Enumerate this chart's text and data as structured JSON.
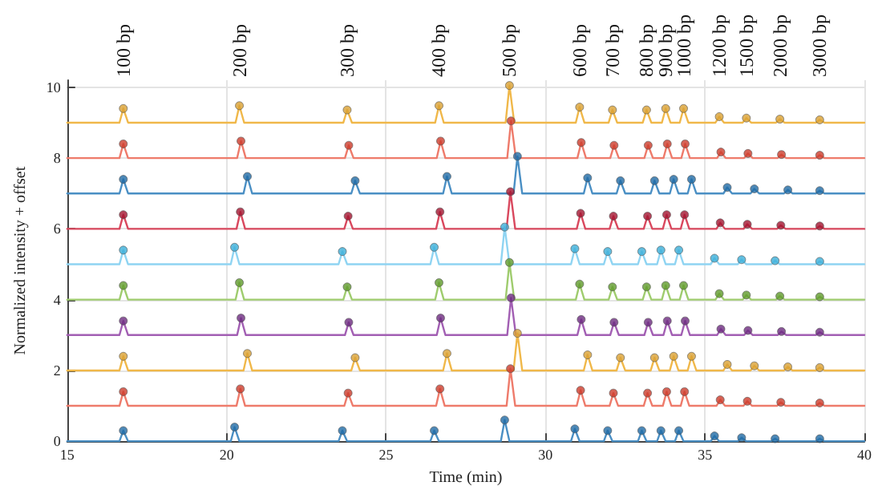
{
  "chart_data": {
    "type": "line",
    "xlabel": "Time (min)",
    "ylabel": "Normalized intensity + offset",
    "xlim": [
      15,
      40
    ],
    "xticks": [
      15,
      20,
      25,
      30,
      35,
      40
    ],
    "ylim": [
      0,
      10.2
    ],
    "yticks": [
      0,
      2,
      4,
      6,
      8,
      10
    ],
    "grid": true,
    "annotations": [
      "100 bp",
      "200 bp",
      "300 bp",
      "400 bp",
      "500 bp",
      "600 bp",
      "700 bp",
      "800 bp",
      "900 bp",
      "1000 bp",
      "1200 bp",
      "1500 bp",
      "2000 bp",
      "3000 bp"
    ],
    "series": [
      {
        "marker": "none",
        "color": "#f0b84a",
        "x": [
          15,
          16.64,
          16.76,
          16.91,
          20.28,
          20.4,
          20.55,
          23.66,
          23.78,
          23.93,
          26.54,
          26.66,
          26.81,
          28.75,
          28.87,
          29.02,
          30.95,
          31.07,
          31.22,
          31.98,
          32.1,
          32.25,
          33.05,
          33.17,
          33.32,
          33.65,
          33.77,
          33.92,
          34.21,
          34.33,
          34.48,
          35.33,
          35.45,
          35.6,
          36.18,
          36.3,
          36.45,
          37.23,
          37.35,
          37.5,
          38.48,
          38.6,
          38.75,
          40
        ],
        "values": [
          9,
          9,
          9.4,
          9,
          9,
          9.48,
          9,
          9,
          9.36,
          9,
          9,
          9.48,
          9,
          9,
          10.05,
          9,
          9,
          9.44,
          9,
          9,
          9.36,
          9,
          9,
          9.36,
          9,
          9,
          9.4,
          9,
          9,
          9.4,
          9,
          9,
          9.17,
          9,
          9,
          9.13,
          9,
          9,
          9.1,
          9,
          9,
          9.08,
          9,
          9
        ]
      },
      {
        "type": "scatter",
        "marker": "circle",
        "color": "#d9a032",
        "x": [
          16.76,
          20.4,
          23.78,
          26.66,
          28.87,
          31.07,
          32.1,
          33.17,
          33.77,
          34.33,
          35.45,
          36.3,
          37.35,
          38.6
        ],
        "values": [
          9.4,
          9.48,
          9.36,
          9.48,
          10.05,
          9.44,
          9.36,
          9.36,
          9.4,
          9.4,
          9.17,
          9.13,
          9.1,
          9.08
        ]
      },
      {
        "marker": "none",
        "color": "#ee7b6b",
        "x": [
          15,
          16.64,
          16.76,
          16.91,
          20.33,
          20.45,
          20.6,
          23.71,
          23.83,
          23.98,
          26.59,
          26.71,
          26.86,
          28.8,
          28.92,
          29.07,
          31,
          31.12,
          31.27,
          32.03,
          32.15,
          32.3,
          33.1,
          33.22,
          33.37,
          33.7,
          33.82,
          33.97,
          34.26,
          34.38,
          34.53,
          35.38,
          35.5,
          35.65,
          36.23,
          36.35,
          36.5,
          37.28,
          37.4,
          37.55,
          38.48,
          38.6,
          38.75,
          40
        ],
        "values": [
          8,
          8,
          8.4,
          8,
          8,
          8.48,
          8,
          8,
          8.36,
          8,
          8,
          8.48,
          8,
          8,
          9.05,
          8,
          8,
          8.44,
          8,
          8,
          8.36,
          8,
          8,
          8.36,
          8,
          8,
          8.4,
          8,
          8,
          8.4,
          8,
          8,
          8.17,
          8,
          8,
          8.13,
          8,
          8,
          8.1,
          8,
          8,
          8.08,
          8,
          8
        ]
      },
      {
        "type": "scatter",
        "marker": "circle",
        "color": "#cc3b2b",
        "x": [
          16.76,
          20.45,
          23.83,
          26.71,
          28.92,
          31.12,
          32.15,
          33.22,
          33.82,
          34.38,
          35.5,
          36.35,
          37.4,
          38.6
        ],
        "values": [
          8.4,
          8.48,
          8.36,
          8.48,
          9.05,
          8.44,
          8.36,
          8.36,
          8.4,
          8.4,
          8.17,
          8.13,
          8.1,
          8.08
        ]
      },
      {
        "marker": "none",
        "color": "#4a8fc4",
        "x": [
          15,
          16.64,
          16.76,
          16.91,
          20.53,
          20.65,
          20.8,
          23.91,
          24.03,
          24.18,
          26.79,
          26.91,
          27.06,
          29,
          29.12,
          29.27,
          31.2,
          31.32,
          31.47,
          32.23,
          32.35,
          32.5,
          33.3,
          33.42,
          33.57,
          33.9,
          34.02,
          34.17,
          34.46,
          34.58,
          34.73,
          35.58,
          35.7,
          35.85,
          36.43,
          36.55,
          36.7,
          37.48,
          37.6,
          37.75,
          38.48,
          38.6,
          38.75,
          40
        ],
        "values": [
          7,
          7,
          7.4,
          7,
          7,
          7.48,
          7,
          7,
          7.36,
          7,
          7,
          7.48,
          7,
          7,
          8.05,
          7,
          7,
          7.44,
          7,
          7,
          7.36,
          7,
          7,
          7.36,
          7,
          7,
          7.4,
          7,
          7,
          7.4,
          7,
          7,
          7.17,
          7,
          7,
          7.13,
          7,
          7,
          7.1,
          7,
          7,
          7.08,
          7,
          7
        ]
      },
      {
        "type": "scatter",
        "marker": "circle",
        "color": "#1f6aa5",
        "x": [
          16.76,
          20.65,
          24.03,
          26.91,
          29.12,
          31.32,
          32.35,
          33.42,
          34.02,
          34.58,
          35.7,
          36.55,
          37.6,
          38.6
        ],
        "values": [
          7.4,
          7.48,
          7.36,
          7.48,
          8.05,
          7.44,
          7.36,
          7.36,
          7.4,
          7.4,
          7.17,
          7.13,
          7.1,
          7.08
        ]
      },
      {
        "marker": "none",
        "color": "#d9485e",
        "x": [
          15,
          16.64,
          16.76,
          16.91,
          20.31,
          20.43,
          20.58,
          23.69,
          23.81,
          23.96,
          26.57,
          26.69,
          26.84,
          28.78,
          28.9,
          29.05,
          30.98,
          31.1,
          31.25,
          32.01,
          32.13,
          32.28,
          33.08,
          33.2,
          33.35,
          33.68,
          33.8,
          33.95,
          34.24,
          34.36,
          34.51,
          35.36,
          35.48,
          35.63,
          36.21,
          36.33,
          36.48,
          37.26,
          37.38,
          37.53,
          38.48,
          38.6,
          38.75,
          40
        ],
        "values": [
          6,
          6,
          6.4,
          6,
          6,
          6.48,
          6,
          6,
          6.36,
          6,
          6,
          6.48,
          6,
          6,
          7.05,
          6,
          6,
          6.44,
          6,
          6,
          6.36,
          6,
          6,
          6.36,
          6,
          6,
          6.4,
          6,
          6,
          6.4,
          6,
          6,
          6.17,
          6,
          6,
          6.13,
          6,
          6,
          6.1,
          6,
          6,
          6.08,
          6,
          6
        ]
      },
      {
        "type": "scatter",
        "marker": "circle",
        "color": "#a2142f",
        "x": [
          16.76,
          20.43,
          23.81,
          26.69,
          28.9,
          31.1,
          32.13,
          33.2,
          33.8,
          34.36,
          35.48,
          36.33,
          37.38,
          38.6
        ],
        "values": [
          6.4,
          6.48,
          6.36,
          6.48,
          7.05,
          6.44,
          6.36,
          6.36,
          6.4,
          6.4,
          6.17,
          6.13,
          6.1,
          6.08
        ]
      },
      {
        "marker": "none",
        "color": "#8fd4f2",
        "x": [
          15,
          16.64,
          16.76,
          16.91,
          20.13,
          20.25,
          20.4,
          23.51,
          23.63,
          23.78,
          26.39,
          26.51,
          26.66,
          28.6,
          28.72,
          28.87,
          30.8,
          30.92,
          31.07,
          31.83,
          31.95,
          32.1,
          32.9,
          33.02,
          33.17,
          33.5,
          33.62,
          33.77,
          34.06,
          34.18,
          34.33,
          35.18,
          35.3,
          35.45,
          36.03,
          36.15,
          36.3,
          37.08,
          37.2,
          37.35,
          38.48,
          38.6,
          38.75,
          40
        ],
        "values": [
          5,
          5,
          5.4,
          5,
          5,
          5.48,
          5,
          5,
          5.36,
          5,
          5,
          5.48,
          5,
          5,
          6.05,
          5,
          5,
          5.44,
          5,
          5,
          5.36,
          5,
          5,
          5.36,
          5,
          5,
          5.4,
          5,
          5,
          5.4,
          5,
          5,
          5.17,
          5,
          5,
          5.13,
          5,
          5,
          5.1,
          5,
          5,
          5.08,
          5,
          5
        ]
      },
      {
        "type": "scatter",
        "marker": "circle",
        "color": "#3aaed8",
        "x": [
          16.76,
          20.25,
          23.63,
          26.51,
          28.72,
          30.92,
          31.95,
          33.02,
          33.62,
          34.18,
          35.3,
          36.15,
          37.2,
          38.6
        ],
        "values": [
          5.4,
          5.48,
          5.36,
          5.48,
          6.05,
          5.44,
          5.36,
          5.36,
          5.4,
          5.4,
          5.17,
          5.13,
          5.1,
          5.08
        ]
      },
      {
        "marker": "none",
        "color": "#9fcc6e",
        "x": [
          15,
          16.64,
          16.76,
          16.91,
          20.28,
          20.4,
          20.55,
          23.66,
          23.78,
          23.93,
          26.54,
          26.66,
          26.81,
          28.75,
          28.87,
          29.02,
          30.95,
          31.07,
          31.22,
          31.98,
          32.1,
          32.25,
          33.05,
          33.17,
          33.32,
          33.65,
          33.77,
          33.92,
          34.21,
          34.33,
          34.48,
          35.33,
          35.45,
          35.6,
          36.18,
          36.3,
          36.45,
          37.23,
          37.35,
          37.5,
          38.48,
          38.6,
          38.75,
          40
        ],
        "values": [
          4,
          4,
          4.4,
          4,
          4,
          4.48,
          4,
          4,
          4.36,
          4,
          4,
          4.48,
          4,
          4,
          5.05,
          4,
          4,
          4.44,
          4,
          4,
          4.36,
          4,
          4,
          4.36,
          4,
          4,
          4.4,
          4,
          4,
          4.4,
          4,
          4,
          4.17,
          4,
          4,
          4.13,
          4,
          4,
          4.1,
          4,
          4,
          4.08,
          4,
          4
        ]
      },
      {
        "type": "scatter",
        "marker": "circle",
        "color": "#5f9a2a",
        "x": [
          16.76,
          20.4,
          23.78,
          26.66,
          28.87,
          31.07,
          32.1,
          33.17,
          33.77,
          34.33,
          35.45,
          36.3,
          37.35,
          38.6
        ],
        "values": [
          4.4,
          4.48,
          4.36,
          4.48,
          5.05,
          4.44,
          4.36,
          4.36,
          4.4,
          4.4,
          4.17,
          4.13,
          4.1,
          4.08
        ]
      },
      {
        "marker": "none",
        "color": "#a25fb3",
        "x": [
          15,
          16.64,
          16.76,
          16.91,
          20.33,
          20.45,
          20.6,
          23.71,
          23.83,
          23.98,
          26.59,
          26.71,
          26.86,
          28.8,
          28.92,
          29.07,
          31,
          31.12,
          31.27,
          32.03,
          32.15,
          32.3,
          33.1,
          33.22,
          33.37,
          33.7,
          33.82,
          33.97,
          34.26,
          34.38,
          34.53,
          35.38,
          35.5,
          35.65,
          36.23,
          36.35,
          36.5,
          37.28,
          37.4,
          37.55,
          38.48,
          38.6,
          38.75,
          40
        ],
        "values": [
          3,
          3,
          3.4,
          3,
          3,
          3.48,
          3,
          3,
          3.36,
          3,
          3,
          3.48,
          3,
          3,
          4.05,
          3,
          3,
          3.44,
          3,
          3,
          3.36,
          3,
          3,
          3.36,
          3,
          3,
          3.4,
          3,
          3,
          3.4,
          3,
          3,
          3.17,
          3,
          3,
          3.13,
          3,
          3,
          3.1,
          3,
          3,
          3.08,
          3,
          3
        ]
      },
      {
        "type": "scatter",
        "marker": "circle",
        "color": "#6d2a80",
        "x": [
          16.76,
          20.45,
          23.83,
          26.71,
          28.92,
          31.12,
          32.15,
          33.22,
          33.82,
          34.38,
          35.5,
          36.35,
          37.4,
          38.6
        ],
        "values": [
          3.4,
          3.48,
          3.36,
          3.48,
          4.05,
          3.44,
          3.36,
          3.36,
          3.4,
          3.4,
          3.17,
          3.13,
          3.1,
          3.08
        ]
      },
      {
        "marker": "none",
        "color": "#f0b84a",
        "x": [
          15,
          16.64,
          16.76,
          16.91,
          20.53,
          20.65,
          20.8,
          23.91,
          24.03,
          24.18,
          26.79,
          26.91,
          27.06,
          29,
          29.12,
          29.27,
          31.2,
          31.32,
          31.47,
          32.23,
          32.35,
          32.5,
          33.3,
          33.42,
          33.57,
          33.9,
          34.02,
          34.17,
          34.46,
          34.58,
          34.73,
          35.58,
          35.7,
          35.85,
          36.43,
          36.55,
          36.7,
          37.48,
          37.6,
          37.75,
          38.48,
          38.6,
          38.75,
          40
        ],
        "values": [
          2,
          2,
          2.4,
          2,
          2,
          2.48,
          2,
          2,
          2.36,
          2,
          2,
          2.48,
          2,
          2,
          3.05,
          2,
          2,
          2.44,
          2,
          2,
          2.36,
          2,
          2,
          2.36,
          2,
          2,
          2.4,
          2,
          2,
          2.4,
          2,
          2,
          2.17,
          2,
          2,
          2.13,
          2,
          2,
          2.1,
          2,
          2,
          2.08,
          2,
          2
        ]
      },
      {
        "type": "scatter",
        "marker": "circle",
        "color": "#d9a032",
        "x": [
          16.76,
          20.65,
          24.03,
          26.91,
          29.12,
          31.32,
          32.35,
          33.42,
          34.02,
          34.58,
          35.7,
          36.55,
          37.6,
          38.6
        ],
        "values": [
          2.4,
          2.48,
          2.36,
          2.48,
          3.05,
          2.44,
          2.36,
          2.36,
          2.4,
          2.4,
          2.17,
          2.13,
          2.1,
          2.08
        ]
      },
      {
        "marker": "none",
        "color": "#ee7b6b",
        "x": [
          15,
          16.64,
          16.76,
          16.91,
          20.31,
          20.43,
          20.58,
          23.69,
          23.81,
          23.96,
          26.57,
          26.69,
          26.84,
          28.78,
          28.9,
          29.05,
          30.98,
          31.1,
          31.25,
          32.01,
          32.13,
          32.28,
          33.08,
          33.2,
          33.35,
          33.68,
          33.8,
          33.95,
          34.24,
          34.36,
          34.51,
          35.36,
          35.48,
          35.63,
          36.21,
          36.33,
          36.48,
          37.26,
          37.38,
          37.53,
          38.48,
          38.6,
          38.75,
          40
        ],
        "values": [
          1,
          1,
          1.4,
          1,
          1,
          1.48,
          1,
          1,
          1.36,
          1,
          1,
          1.48,
          1,
          1,
          2.05,
          1,
          1,
          1.44,
          1,
          1,
          1.36,
          1,
          1,
          1.36,
          1,
          1,
          1.4,
          1,
          1,
          1.4,
          1,
          1,
          1.17,
          1,
          1,
          1.13,
          1,
          1,
          1.1,
          1,
          1,
          1.08,
          1,
          1
        ]
      },
      {
        "type": "scatter",
        "marker": "circle",
        "color": "#cc3b2b",
        "x": [
          16.76,
          20.43,
          23.81,
          26.69,
          28.9,
          31.1,
          32.13,
          33.2,
          33.8,
          34.36,
          35.48,
          36.33,
          37.38,
          38.6
        ],
        "values": [
          1.4,
          1.48,
          1.36,
          1.48,
          2.05,
          1.44,
          1.36,
          1.36,
          1.4,
          1.4,
          1.17,
          1.13,
          1.1,
          1.08
        ]
      },
      {
        "marker": "none",
        "color": "#4a8fc4",
        "x": [
          15,
          16.64,
          16.76,
          16.91,
          20.13,
          20.25,
          20.4,
          23.51,
          23.63,
          23.78,
          26.39,
          26.51,
          26.66,
          28.6,
          28.72,
          28.87,
          30.8,
          30.92,
          31.07,
          31.83,
          31.95,
          32.1,
          32.9,
          33.02,
          33.17,
          33.5,
          33.62,
          33.77,
          34.06,
          34.18,
          34.33,
          35.18,
          35.3,
          35.45,
          36.03,
          36.15,
          36.3,
          37.08,
          37.2,
          37.35,
          38.48,
          38.6,
          38.75,
          40
        ],
        "values": [
          0,
          0,
          0.3,
          0,
          0,
          0.4,
          0,
          0,
          0.3,
          0,
          0,
          0.3,
          0,
          0,
          0.6,
          0,
          0,
          0.35,
          0,
          0,
          0.3,
          0,
          0,
          0.3,
          0,
          0,
          0.3,
          0,
          0,
          0.3,
          0,
          0,
          0.15,
          0,
          0,
          0.1,
          0,
          0,
          0.07,
          0,
          0,
          0.07,
          0,
          0
        ]
      },
      {
        "type": "scatter",
        "marker": "circle",
        "color": "#1f6aa5",
        "x": [
          16.76,
          20.25,
          23.63,
          26.51,
          28.72,
          30.92,
          31.95,
          33.02,
          33.62,
          34.18,
          35.3,
          36.15,
          37.2,
          38.6
        ],
        "values": [
          0.3,
          0.4,
          0.3,
          0.3,
          0.6,
          0.35,
          0.3,
          0.3,
          0.3,
          0.3,
          0.15,
          0.1,
          0.07,
          0.07
        ]
      }
    ]
  }
}
